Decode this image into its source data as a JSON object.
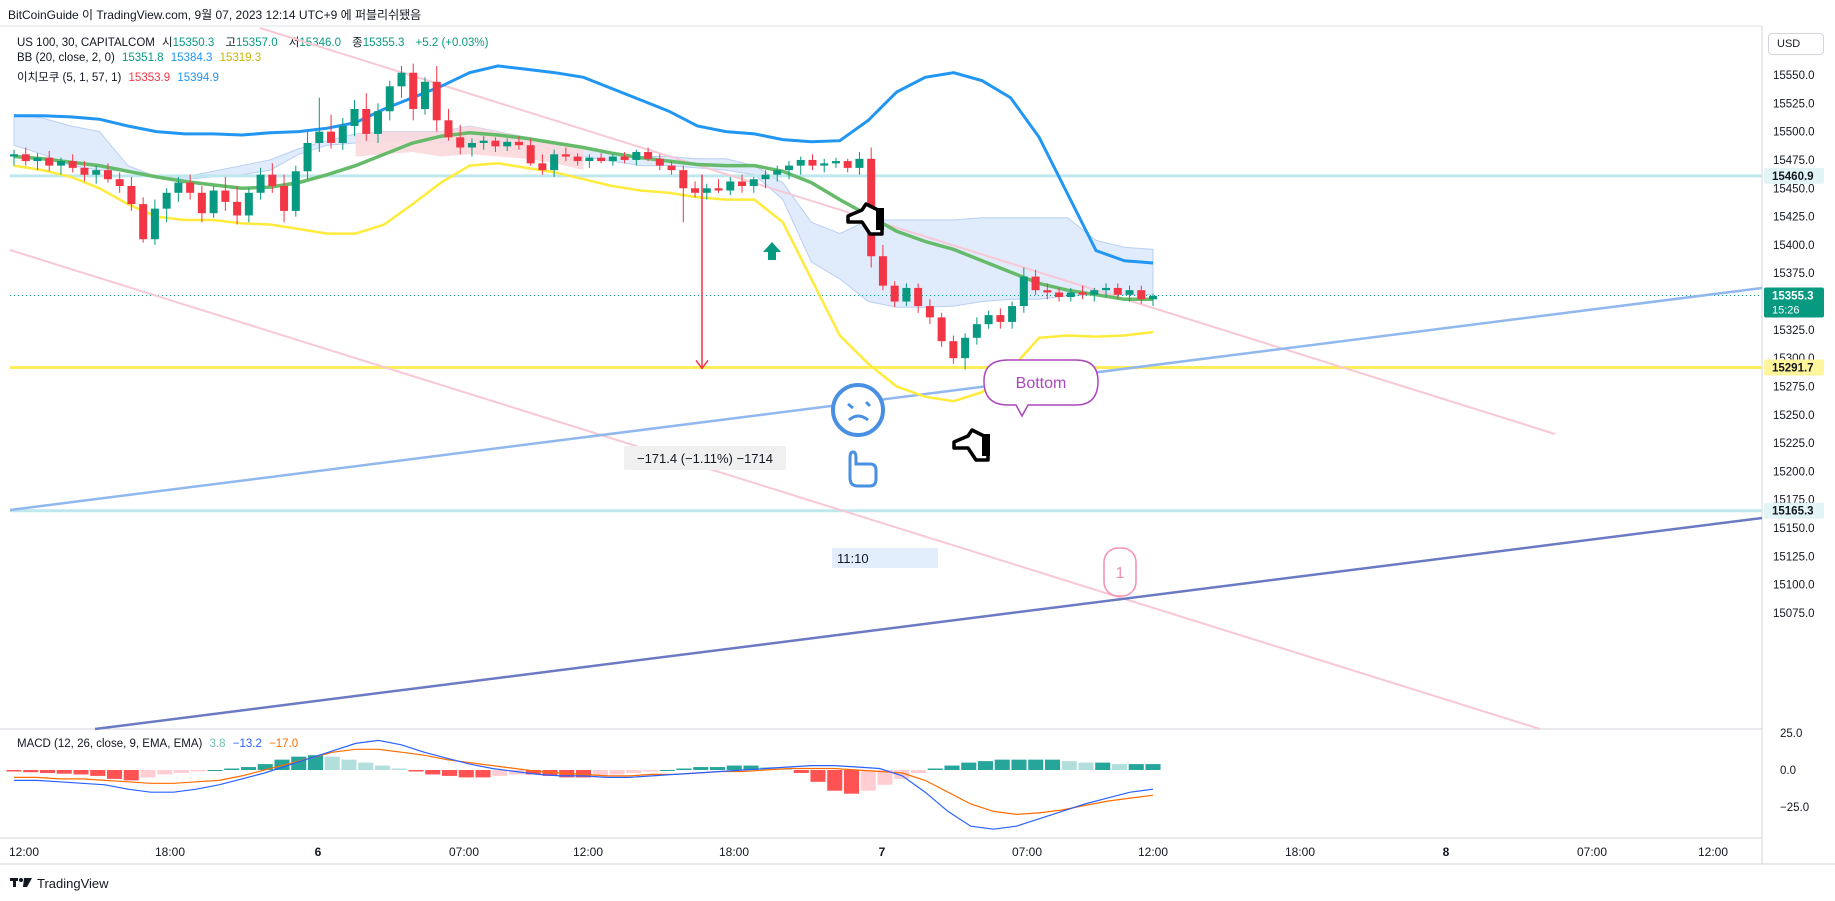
{
  "header": {
    "published": "BitCoinGuide 이 TradingView.com, 9월 07, 2023 12:14 UTC+9 에 퍼블리쉬됐음"
  },
  "legend": {
    "symbol": "US 100, 30, CAPITALCOM",
    "o_label": "시",
    "o_value": "15350.3",
    "h_label": "고",
    "h_value": "15357.0",
    "l_label": "저",
    "l_value": "15346.0",
    "c_label": "종",
    "c_value": "15355.3",
    "change": "+5.2 (+0.03%)",
    "bb_name": "BB (20, close, 2, 0)",
    "bb_basis": "15351.8",
    "bb_upper": "15384.3",
    "bb_lower": "15319.3",
    "ichimoku_name": "이치모쿠 (5, 1, 57, 1)",
    "ichimoku_a": "15353.9",
    "ichimoku_b": "15394.9",
    "macd_name": "MACD (12, 26, close, 9, EMA, EMA)",
    "macd_hist": "3.8",
    "macd_line": "−13.2",
    "macd_signal": "−17.0"
  },
  "currency_button": "USD",
  "colors": {
    "up": "#089981",
    "down": "#f23645",
    "bb_upper": "#2196f3",
    "bb_basis": "#66bb6a",
    "bb_lower": "#ffeb3b",
    "cloud": "#dbe8fb",
    "cloud_bear": "#fbd9dd",
    "pink_line": "#f8c8d4",
    "light_blue_line": "#90b8ef",
    "dark_blue_line": "#6a7ac4",
    "hline_cyan": "#bfe8ee",
    "hline_yellow": "#ffee58",
    "macd_line": "#2962ff",
    "signal_line": "#ff6d00"
  },
  "chart_data": {
    "type": "candlestick",
    "ylim": [
      15060,
      15575
    ],
    "y_ticks": [
      "15550.0",
      "15525.0",
      "15500.0",
      "15475.0",
      "15450.0",
      "15425.0",
      "15400.0",
      "15375.0",
      "15350.0",
      "15325.0",
      "15300.0",
      "15275.0",
      "15250.0",
      "15225.0",
      "15200.0",
      "15175.0",
      "15150.0",
      "15125.0",
      "15100.0",
      "15075.0"
    ],
    "x_ticks": [
      "12:00",
      "18:00",
      "6",
      "07:00",
      "12:00",
      "18:00",
      "7",
      "07:00",
      "12:00",
      "18:00",
      "8",
      "07:00",
      "12:00"
    ],
    "price_labels": [
      {
        "value": "15460.9",
        "kind": "cyan"
      },
      {
        "value": "15355.3",
        "sub": "15:26",
        "kind": "current"
      },
      {
        "value": "15291.7",
        "kind": "yellow"
      },
      {
        "value": "15165.3",
        "kind": "cyan"
      }
    ],
    "candles": [
      [
        15478,
        15484,
        15470,
        15480
      ],
      [
        15480,
        15486,
        15470,
        15474
      ],
      [
        15474,
        15481,
        15466,
        15477
      ],
      [
        15477,
        15483,
        15465,
        15470
      ],
      [
        15470,
        15477,
        15462,
        15474
      ],
      [
        15474,
        15480,
        15464,
        15468
      ],
      [
        15468,
        15474,
        15456,
        15462
      ],
      [
        15462,
        15470,
        15454,
        15466
      ],
      [
        15466,
        15472,
        15455,
        15458
      ],
      [
        15458,
        15464,
        15446,
        15452
      ],
      [
        15452,
        15460,
        15430,
        15436
      ],
      [
        15436,
        15442,
        15402,
        15405
      ],
      [
        15405,
        15440,
        15400,
        15432
      ],
      [
        15432,
        15450,
        15420,
        15446
      ],
      [
        15446,
        15460,
        15438,
        15455
      ],
      [
        15455,
        15462,
        15440,
        15446
      ],
      [
        15446,
        15452,
        15420,
        15428
      ],
      [
        15428,
        15452,
        15424,
        15448
      ],
      [
        15448,
        15460,
        15430,
        15438
      ],
      [
        15438,
        15452,
        15418,
        15426
      ],
      [
        15426,
        15450,
        15420,
        15446
      ],
      [
        15446,
        15468,
        15440,
        15462
      ],
      [
        15462,
        15472,
        15446,
        15452
      ],
      [
        15452,
        15462,
        15420,
        15430
      ],
      [
        15430,
        15470,
        15425,
        15465
      ],
      [
        15465,
        15500,
        15458,
        15490
      ],
      [
        15490,
        15530,
        15482,
        15500
      ],
      [
        15500,
        15515,
        15485,
        15490
      ],
      [
        15490,
        15512,
        15484,
        15505
      ],
      [
        15505,
        15528,
        15496,
        15520
      ],
      [
        15520,
        15534,
        15492,
        15498
      ],
      [
        15498,
        15525,
        15490,
        15518
      ],
      [
        15518,
        15545,
        15510,
        15540
      ],
      [
        15540,
        15558,
        15530,
        15552
      ],
      [
        15552,
        15560,
        15510,
        15520
      ],
      [
        15520,
        15548,
        15515,
        15544
      ],
      [
        15544,
        15558,
        15500,
        15510
      ],
      [
        15510,
        15520,
        15492,
        15495
      ],
      [
        15495,
        15506,
        15480,
        15486
      ],
      [
        15486,
        15494,
        15478,
        15490
      ],
      [
        15490,
        15496,
        15484,
        15492
      ],
      [
        15492,
        15495,
        15482,
        15487
      ],
      [
        15487,
        15494,
        15483,
        15491
      ],
      [
        15491,
        15496,
        15484,
        15488
      ],
      [
        15488,
        15494,
        15470,
        15472
      ],
      [
        15472,
        15480,
        15462,
        15466
      ],
      [
        15466,
        15484,
        15460,
        15480
      ],
      [
        15480,
        15486,
        15474,
        15478
      ],
      [
        15478,
        15481,
        15470,
        15474
      ],
      [
        15474,
        15480,
        15468,
        15477
      ],
      [
        15477,
        15481,
        15472,
        15474
      ],
      [
        15474,
        15480,
        15470,
        15478
      ],
      [
        15478,
        15482,
        15472,
        15475
      ],
      [
        15475,
        15484,
        15470,
        15482
      ],
      [
        15482,
        15486,
        15474,
        15476
      ],
      [
        15476,
        15480,
        15466,
        15470
      ],
      [
        15470,
        15474,
        15462,
        15466
      ],
      [
        15466,
        15470,
        15420,
        15450
      ],
      [
        15450,
        15456,
        15442,
        15446
      ],
      [
        15446,
        15454,
        15440,
        15450
      ],
      [
        15450,
        15458,
        15446,
        15448
      ],
      [
        15448,
        15460,
        15444,
        15456
      ],
      [
        15456,
        15462,
        15446,
        15452
      ],
      [
        15452,
        15460,
        15446,
        15458
      ],
      [
        15458,
        15466,
        15450,
        15462
      ],
      [
        15462,
        15470,
        15456,
        15466
      ],
      [
        15466,
        15474,
        15458,
        15470
      ],
      [
        15470,
        15478,
        15462,
        15475
      ],
      [
        15475,
        15480,
        15466,
        15470
      ],
      [
        15470,
        15476,
        15464,
        15472
      ],
      [
        15472,
        15477,
        15468,
        15474
      ],
      [
        15474,
        15476,
        15464,
        15468
      ],
      [
        15468,
        15482,
        15462,
        15476
      ],
      [
        15476,
        15486,
        15380,
        15390
      ],
      [
        15390,
        15400,
        15360,
        15364
      ],
      [
        15364,
        15368,
        15345,
        15350
      ],
      [
        15350,
        15366,
        15346,
        15362
      ],
      [
        15362,
        15366,
        15340,
        15346
      ],
      [
        15346,
        15352,
        15330,
        15336
      ],
      [
        15336,
        15340,
        15310,
        15315
      ],
      [
        15315,
        15320,
        15295,
        15300
      ],
      [
        15300,
        15322,
        15290,
        15318
      ],
      [
        15318,
        15336,
        15312,
        15330
      ],
      [
        15330,
        15342,
        15326,
        15338
      ],
      [
        15338,
        15344,
        15326,
        15332
      ],
      [
        15332,
        15350,
        15326,
        15346
      ],
      [
        15346,
        15380,
        15340,
        15372
      ],
      [
        15372,
        15378,
        15356,
        15360
      ],
      [
        15360,
        15366,
        15352,
        15358
      ],
      [
        15358,
        15362,
        15350,
        15354
      ],
      [
        15354,
        15362,
        15350,
        15358
      ],
      [
        15358,
        15364,
        15352,
        15356
      ],
      [
        15356,
        15362,
        15350,
        15360
      ],
      [
        15360,
        15366,
        15354,
        15362
      ],
      [
        15362,
        15366,
        15352,
        15356
      ],
      [
        15356,
        15364,
        15350,
        15360
      ],
      [
        15360,
        15364,
        15348,
        15352
      ],
      [
        15352,
        15357,
        15346,
        15355
      ]
    ],
    "bb_upper": [
      15514,
      15514,
      15513,
      15511,
      15505,
      15500,
      15498,
      15498,
      15497,
      15499,
      15500,
      15503,
      15508,
      15520,
      15530,
      15540,
      15552,
      15558,
      15555,
      15552,
      15548,
      15538,
      15528,
      15518,
      15505,
      15500,
      15498,
      15493,
      15491,
      15492,
      15510,
      15535,
      15548,
      15552,
      15545,
      15530,
      15495,
      15445,
      15395,
      15386,
      15384
    ],
    "bb_basis": [
      15478,
      15476,
      15473,
      15470,
      15465,
      15460,
      15456,
      15453,
      15450,
      15451,
      15455,
      15462,
      15470,
      15480,
      15490,
      15496,
      15499,
      15497,
      15494,
      15490,
      15486,
      15481,
      15477,
      15474,
      15471,
      15470,
      15470,
      15465,
      15455,
      15440,
      15426,
      15412,
      15403,
      15396,
      15386,
      15376,
      15366,
      15360,
      15356,
      15352,
      15352
    ],
    "bb_lower": [
      15470,
      15466,
      15460,
      15450,
      15436,
      15425,
      15422,
      15422,
      15419,
      15418,
      15414,
      15410,
      15410,
      15418,
      15436,
      15455,
      15470,
      15472,
      15468,
      15464,
      15458,
      15452,
      15448,
      15446,
      15442,
      15440,
      15440,
      15420,
      15370,
      15320,
      15295,
      15275,
      15266,
      15262,
      15270,
      15290,
      15318,
      15320,
      15319,
      15320,
      15323
    ],
    "cloud_top": [
      15515,
      15512,
      15505,
      15500,
      15470,
      15460,
      15460,
      15465,
      15470,
      15475,
      15485,
      15492,
      15498,
      15500,
      15500,
      15500,
      15505,
      15500,
      15495,
      15490,
      15485,
      15480,
      15478,
      15478,
      15476,
      15476,
      15470,
      15455,
      15420,
      15410,
      15422,
      15422,
      15422,
      15422,
      15424,
      15424,
      15424,
      15424,
      15404,
      15398,
      15396
    ],
    "cloud_bottom": [
      15488,
      15480,
      15470,
      15466,
      15465,
      15460,
      15458,
      15460,
      15462,
      15466,
      15480,
      15488,
      15490,
      15492,
      15494,
      15490,
      15492,
      15490,
      15488,
      15484,
      15478,
      15474,
      15470,
      15470,
      15468,
      15466,
      15462,
      15440,
      15385,
      15370,
      15350,
      15345,
      15345,
      15346,
      15350,
      15352,
      15352,
      15355,
      15356,
      15356,
      15356
    ],
    "annotations": {
      "measure_label": "−171.4 (−1.11%) −1714",
      "time_label": "11:10",
      "callout": "Bottom",
      "circle_badge": "1"
    },
    "macd": {
      "ylim": [
        -40,
        30
      ],
      "y_ticks": [
        "25.0",
        "0.0",
        "−25.0"
      ],
      "hist": [
        -1,
        -1.5,
        -2,
        -2.5,
        -3,
        -4,
        -6,
        -7,
        -5,
        -3,
        -2,
        -1,
        0,
        1,
        2,
        4,
        7,
        9,
        10,
        9,
        7,
        5,
        3,
        1,
        -1,
        -3,
        -4,
        -5,
        -5,
        -4,
        -3,
        -3,
        -4,
        -5,
        -5,
        -4,
        -3,
        -2,
        -1,
        0,
        1,
        2,
        2,
        3,
        3,
        2,
        1,
        -2,
        -8,
        -14,
        -16,
        -14,
        -10,
        -6,
        -2,
        1,
        3,
        5,
        6,
        7,
        7,
        7,
        7,
        6,
        5,
        5,
        4,
        4,
        4
      ],
      "macd_line": [
        -7,
        -7,
        -8,
        -9,
        -10,
        -13,
        -15,
        -15,
        -13,
        -10,
        -6,
        -2,
        3,
        8,
        13,
        18,
        20,
        17,
        12,
        8,
        4,
        1,
        -1,
        -3,
        -4,
        -4,
        -5,
        -5,
        -4,
        -3,
        -2,
        -1,
        0,
        1,
        2,
        3,
        3,
        2,
        1,
        -4,
        -15,
        -28,
        -38,
        -40,
        -38,
        -33,
        -28,
        -23,
        -19,
        -15,
        -13
      ],
      "signal_line": [
        -5,
        -5,
        -6,
        -6,
        -7,
        -8,
        -9,
        -9,
        -8,
        -7,
        -4,
        0,
        4,
        8,
        12,
        14,
        14,
        12,
        10,
        7,
        5,
        3,
        1,
        -1,
        -2,
        -3,
        -4,
        -4,
        -3,
        -3,
        -2,
        -1,
        -1,
        0,
        1,
        1,
        1,
        0,
        -1,
        -2,
        -7,
        -15,
        -23,
        -28,
        -30,
        -29,
        -27,
        -24,
        -21,
        -19,
        -17
      ]
    }
  }
}
